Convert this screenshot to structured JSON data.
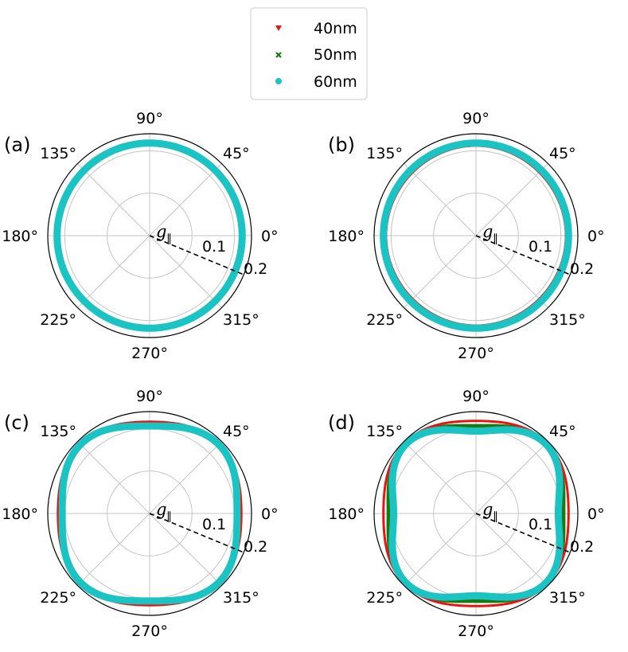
{
  "legend": {
    "items": [
      {
        "label": "40nm",
        "color": "#e8140f",
        "marker": "triangle-down"
      },
      {
        "label": "50nm",
        "color": "#1a7a12",
        "marker": "x"
      },
      {
        "label": "60nm",
        "color": "#1cc3c3",
        "marker": "circle"
      }
    ]
  },
  "chart_data": [
    {
      "type": "polar",
      "panel_label": "(a)",
      "radial_label": "g",
      "radial_label_sub": "∥",
      "rlim": [
        0,
        0.24
      ],
      "rticks": [
        "0.1",
        "0.2"
      ],
      "angle_ticks": [
        "0°",
        "45°",
        "90°",
        "135°",
        "180°",
        "225°",
        "270°",
        "315°"
      ],
      "grid": true,
      "series": [
        {
          "name": "40nm",
          "r_axis": 0.214,
          "r_diag": 0.214
        },
        {
          "name": "50nm",
          "r_axis": 0.215,
          "r_diag": 0.215
        },
        {
          "name": "60nm",
          "r_axis": 0.218,
          "r_diag": 0.218
        }
      ]
    },
    {
      "type": "polar",
      "panel_label": "(b)",
      "radial_label": "g",
      "radial_label_sub": "∥",
      "rlim": [
        0,
        0.24
      ],
      "rticks": [
        "0.1",
        "0.2"
      ],
      "angle_ticks": [
        "0°",
        "45°",
        "90°",
        "135°",
        "180°",
        "225°",
        "270°",
        "315°"
      ],
      "grid": true,
      "series": [
        {
          "name": "40nm",
          "r_axis": 0.212,
          "r_diag": 0.211
        },
        {
          "name": "50nm",
          "r_axis": 0.214,
          "r_diag": 0.213
        },
        {
          "name": "60nm",
          "r_axis": 0.218,
          "r_diag": 0.218
        }
      ]
    },
    {
      "type": "polar",
      "panel_label": "(c)",
      "radial_label": "g",
      "radial_label_sub": "∥",
      "rlim": [
        0,
        0.24
      ],
      "rticks": [
        "0.1",
        "0.2"
      ],
      "angle_ticks": [
        "0°",
        "45°",
        "90°",
        "135°",
        "180°",
        "225°",
        "270°",
        "315°"
      ],
      "grid": true,
      "series": [
        {
          "name": "40nm",
          "r_axis": 0.216,
          "r_diag": 0.232
        },
        {
          "name": "50nm",
          "r_axis": 0.212,
          "r_diag": 0.231
        },
        {
          "name": "60nm",
          "r_axis": 0.206,
          "r_diag": 0.23
        }
      ]
    },
    {
      "type": "polar",
      "panel_label": "(d)",
      "radial_label": "g",
      "radial_label_sub": "∥",
      "rlim": [
        0,
        0.24
      ],
      "rticks": [
        "0.1",
        "0.2"
      ],
      "angle_ticks": [
        "0°",
        "45°",
        "90°",
        "135°",
        "180°",
        "225°",
        "270°",
        "315°"
      ],
      "grid": true,
      "series": [
        {
          "name": "40nm",
          "r_axis": 0.218,
          "r_diag": 0.236
        },
        {
          "name": "50nm",
          "r_axis": 0.206,
          "r_diag": 0.234
        },
        {
          "name": "60nm",
          "r_axis": 0.194,
          "r_diag": 0.232
        }
      ]
    }
  ]
}
